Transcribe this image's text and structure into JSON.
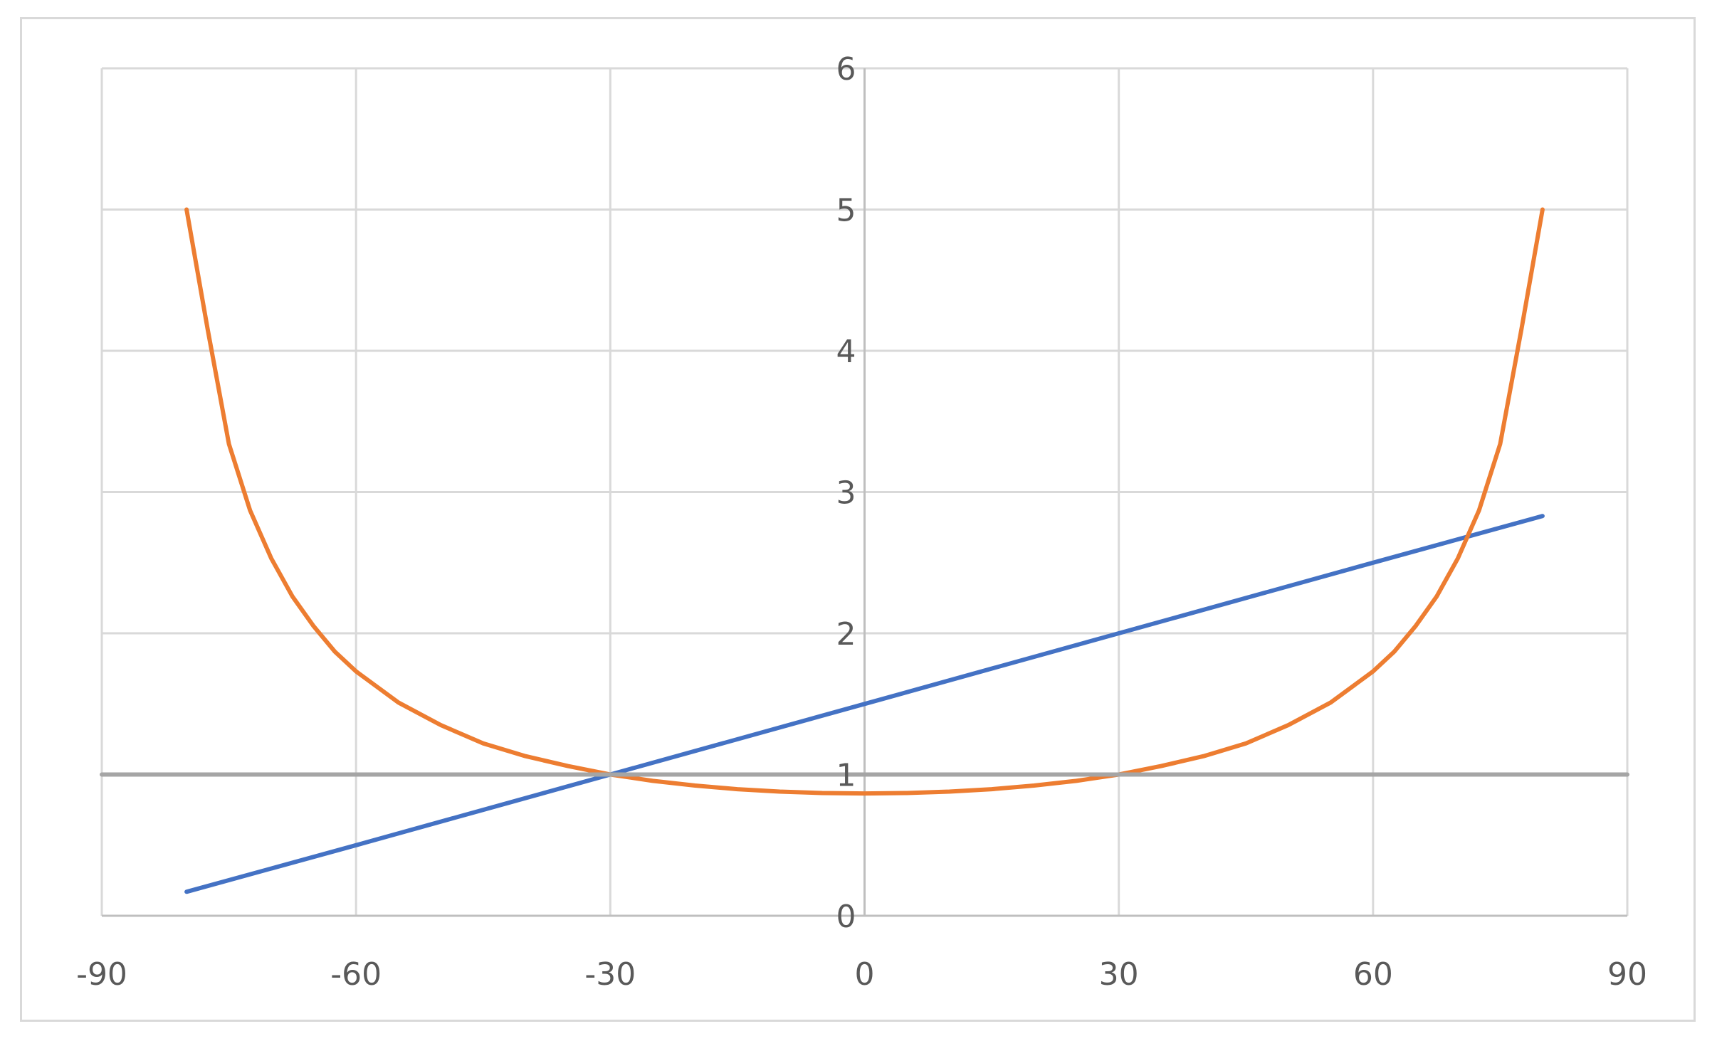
{
  "chart_data": {
    "type": "line",
    "title": "",
    "xlabel": "",
    "ylabel": "",
    "xlim": [
      -90,
      90
    ],
    "ylim": [
      0,
      6
    ],
    "x_ticks": [
      -90,
      -60,
      -30,
      0,
      30,
      60,
      90
    ],
    "y_ticks": [
      0,
      1,
      2,
      3,
      4,
      5,
      6
    ],
    "x_tick_labels": [
      "-90",
      "-60",
      "-30",
      "0",
      "30",
      "60",
      "90"
    ],
    "y_tick_labels": [
      "0",
      "1",
      "2",
      "3",
      "4",
      "5",
      "6"
    ],
    "grid": true,
    "legend": "none",
    "series": [
      {
        "color": "#4472c4",
        "x": [
          -80,
          -60,
          -30,
          0,
          30,
          60,
          80
        ],
        "y": [
          0.17,
          0.5,
          1.0,
          1.5,
          2.0,
          2.5,
          2.83
        ]
      },
      {
        "color": "#ed7d31",
        "x": [
          -80,
          -77.5,
          -75,
          -72.5,
          -70,
          -67.5,
          -65,
          -62.5,
          -60,
          -55,
          -50,
          -45,
          -40,
          -35,
          -30,
          -25,
          -20,
          -15,
          -10,
          -5,
          0,
          5,
          10,
          15,
          20,
          25,
          30,
          35,
          40,
          45,
          50,
          55,
          60,
          62.5,
          65,
          67.5,
          70,
          72.5,
          75,
          77.5,
          80
        ],
        "y": [
          5.0,
          4.15,
          3.34,
          2.87,
          2.53,
          2.26,
          2.05,
          1.87,
          1.73,
          1.51,
          1.35,
          1.22,
          1.13,
          1.06,
          1.0,
          0.955,
          0.922,
          0.896,
          0.879,
          0.869,
          0.866,
          0.869,
          0.879,
          0.896,
          0.922,
          0.955,
          1.0,
          1.06,
          1.13,
          1.22,
          1.35,
          1.51,
          1.73,
          1.87,
          2.05,
          2.26,
          2.53,
          2.87,
          3.34,
          4.15,
          5.0
        ]
      },
      {
        "color": "#a5a5a5",
        "x": [
          -90,
          90
        ],
        "y": [
          1,
          1
        ]
      }
    ]
  }
}
